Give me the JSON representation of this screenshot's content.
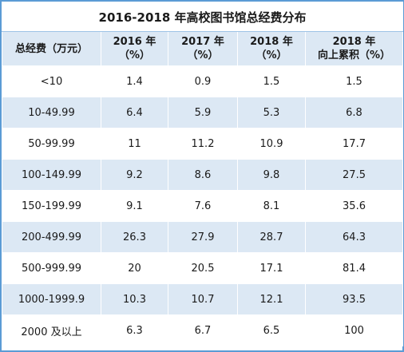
{
  "chart_data": {
    "type": "table",
    "title": "2016-2018 年高校图书馆总经费分布",
    "columns": [
      [
        "总经费（万元）"
      ],
      [
        "2016 年",
        "（%）"
      ],
      [
        "2017 年",
        "（%）"
      ],
      [
        "2018 年",
        "（%）"
      ],
      [
        "2018 年",
        "向上累积（%）"
      ]
    ],
    "rows": [
      [
        "<10",
        "1.4",
        "0.9",
        "1.5",
        "1.5"
      ],
      [
        "10-49.99",
        "6.4",
        "5.9",
        "5.3",
        "6.8"
      ],
      [
        "50-99.99",
        "11",
        "11.2",
        "10.9",
        "17.7"
      ],
      [
        "100-149.99",
        "9.2",
        "8.6",
        "9.8",
        "27.5"
      ],
      [
        "150-199.99",
        "9.1",
        "7.6",
        "8.1",
        "35.6"
      ],
      [
        "200-499.99",
        "26.3",
        "27.9",
        "28.7",
        "64.3"
      ],
      [
        "500-999.99",
        "20",
        "20.5",
        "17.1",
        "81.4"
      ],
      [
        "1000-1999.9",
        "10.3",
        "10.7",
        "12.1",
        "93.5"
      ],
      [
        "2000 及以上",
        "6.3",
        "6.7",
        "6.5",
        "100"
      ]
    ]
  },
  "colors": {
    "border": "#5b9bd5",
    "band": "#dce8f4",
    "background": "#ffffff"
  }
}
